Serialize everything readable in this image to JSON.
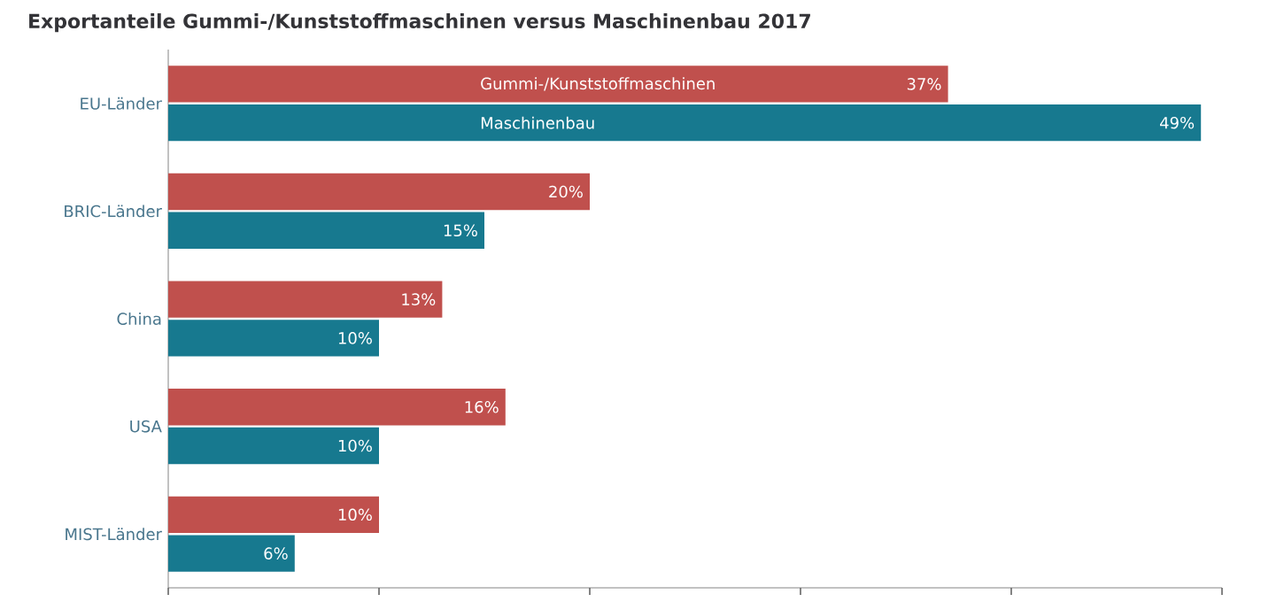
{
  "chart_data": {
    "type": "bar",
    "orientation": "horizontal",
    "title": "Exportanteile Gummi-/Kunststoffmaschinen versus Maschinenbau 2017",
    "categories": [
      "EU-Länder",
      "BRIC-Länder",
      "China",
      "USA",
      "MIST-Länder"
    ],
    "series": [
      {
        "name": "Gummi-/Kunststoffmaschinen",
        "color": "#c0504d",
        "values": [
          37,
          20,
          13,
          16,
          10
        ],
        "value_labels": [
          "37%",
          "20%",
          "13%",
          "16%",
          "10%"
        ]
      },
      {
        "name": "Maschinenbau",
        "color": "#17798f",
        "values": [
          49,
          15,
          10,
          10,
          6
        ],
        "value_labels": [
          "49%",
          "15%",
          "10%",
          "10%",
          "6%"
        ]
      }
    ],
    "xlim": [
      0,
      50
    ],
    "xticks": [
      {
        "value": 0,
        "label": null
      },
      {
        "value": 10,
        "label": null
      },
      {
        "value": 20,
        "label": null
      },
      {
        "value": 30,
        "label": null
      },
      {
        "value": 40,
        "label": null
      },
      {
        "value": 50,
        "label": null
      }
    ],
    "tick_labels": "y",
    "grid": false
  }
}
